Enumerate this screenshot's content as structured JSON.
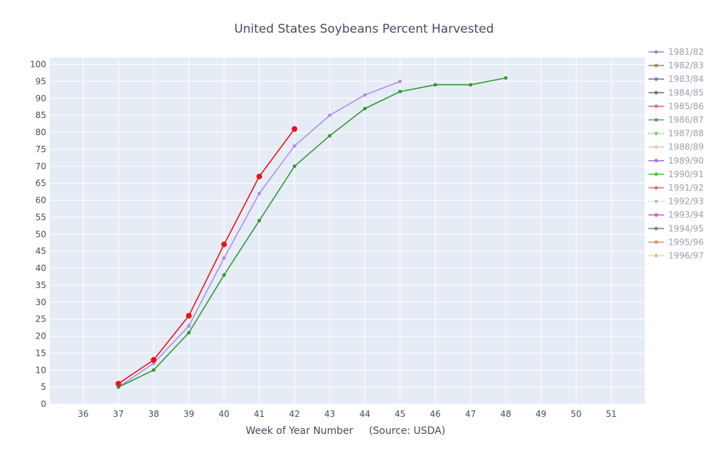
{
  "chart_data": {
    "type": "line",
    "title": "United States Soybeans Percent Harvested",
    "xlabel": "Week of Year Number     (Source: USDA)",
    "ylabel": "",
    "xlim": [
      35.05,
      51.95
    ],
    "ylim": [
      0,
      102
    ],
    "x_ticks": [
      36,
      37,
      38,
      39,
      40,
      41,
      42,
      43,
      44,
      45,
      46,
      47,
      48,
      49,
      50,
      51
    ],
    "y_ticks": [
      0,
      5,
      10,
      15,
      20,
      25,
      30,
      35,
      40,
      45,
      50,
      55,
      60,
      65,
      70,
      75,
      80,
      85,
      90,
      95,
      100
    ],
    "grid": true,
    "legend_position": "right",
    "plot_background": "#e5ecf6",
    "series": [
      {
        "name": "1981/82",
        "color": "#8f86d6",
        "legend_only": true,
        "x": [],
        "values": []
      },
      {
        "name": "1982/83",
        "color": "#a08a62",
        "legend_only": true,
        "x": [],
        "values": []
      },
      {
        "name": "1983/84",
        "color": "#7e6fd0",
        "legend_only": true,
        "x": [],
        "values": []
      },
      {
        "name": "1984/85",
        "color": "#6b7583",
        "legend_only": true,
        "x": [],
        "values": []
      },
      {
        "name": "1985/86",
        "color": "#e8609a",
        "legend_only": true,
        "x": [],
        "values": []
      },
      {
        "name": "1986/87",
        "color": "#5c9a78",
        "legend_only": true,
        "x": [],
        "values": []
      },
      {
        "name": "1987/88",
        "color": "#6ad86a",
        "legend_only": true,
        "dash": "2,2",
        "x": [],
        "values": []
      },
      {
        "name": "1988/89",
        "color": "#f5c4a8",
        "legend_only": true,
        "x": [],
        "values": []
      },
      {
        "name": "1989/90",
        "color": "#b070e8",
        "legend_only": true,
        "x": [],
        "values": []
      },
      {
        "name": "1990/91",
        "color": "#48c448",
        "legend_only": true,
        "x": [],
        "values": []
      },
      {
        "name": "1991/92",
        "color": "#f06a6a",
        "legend_only": true,
        "x": [],
        "values": []
      },
      {
        "name": "1992/93",
        "color": "#b8bccc",
        "legend_only": true,
        "dash": "1,2",
        "x": [],
        "values": []
      },
      {
        "name": "1993/94",
        "color": "#d35ad3",
        "legend_only": true,
        "x": [],
        "values": []
      },
      {
        "name": "1994/95",
        "color": "#7088a8",
        "legend_only": true,
        "x": [],
        "values": []
      },
      {
        "name": "1995/96",
        "color": "#e0946a",
        "legend_only": true,
        "x": [],
        "values": []
      },
      {
        "name": "1996/97",
        "color": "#f0b880",
        "legend_only": true,
        "dash": "2,2",
        "x": [],
        "values": []
      },
      {
        "name": "",
        "color": "#b28ce8",
        "marker_size": 2.5,
        "x": [
          37,
          38,
          39,
          40,
          41,
          42,
          43,
          44,
          45
        ],
        "values": [
          5,
          12,
          23,
          43,
          62,
          76,
          85,
          91,
          95
        ]
      },
      {
        "name": "",
        "color": "#2e9a2e",
        "marker_size": 2.5,
        "x": [
          37,
          38,
          39,
          40,
          41,
          42,
          43,
          44,
          45,
          46,
          47,
          48
        ],
        "values": [
          5,
          10,
          21,
          38,
          54,
          70,
          79,
          87,
          92,
          94,
          94,
          96
        ]
      },
      {
        "name": "",
        "color": "#ee1111",
        "marker_size": 4,
        "x": [
          37,
          38,
          39,
          40,
          41,
          42
        ],
        "values": [
          6,
          13,
          26,
          47,
          67,
          81
        ]
      }
    ]
  }
}
